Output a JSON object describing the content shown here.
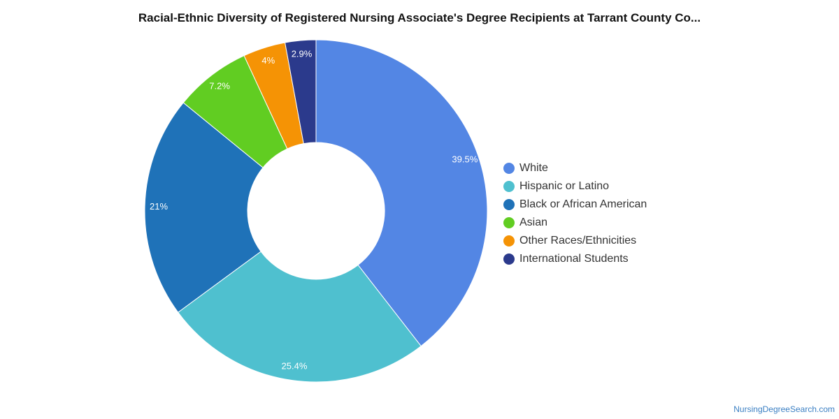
{
  "title": "Racial-Ethnic Diversity of Registered Nursing Associate's Degree Recipients at Tarrant County Co...",
  "credit": "NursingDegreeSearch.com",
  "chart_data": {
    "type": "pie",
    "variant": "donut",
    "legend_position": "right",
    "series": [
      {
        "name": "White",
        "value": 39.5,
        "label": "39.5%",
        "color": "#5386e4"
      },
      {
        "name": "Hispanic or Latino",
        "value": 25.4,
        "label": "25.4%",
        "color": "#4fc0cf"
      },
      {
        "name": "Black or African American",
        "value": 21,
        "label": "21%",
        "color": "#1f72b8"
      },
      {
        "name": "Asian",
        "value": 7.2,
        "label": "7.2%",
        "color": "#61cd22"
      },
      {
        "name": "Other Races/Ethnicities",
        "value": 4,
        "label": "4%",
        "color": "#f59305"
      },
      {
        "name": "International Students",
        "value": 2.9,
        "label": "2.9%",
        "color": "#2b3a8c"
      }
    ]
  }
}
